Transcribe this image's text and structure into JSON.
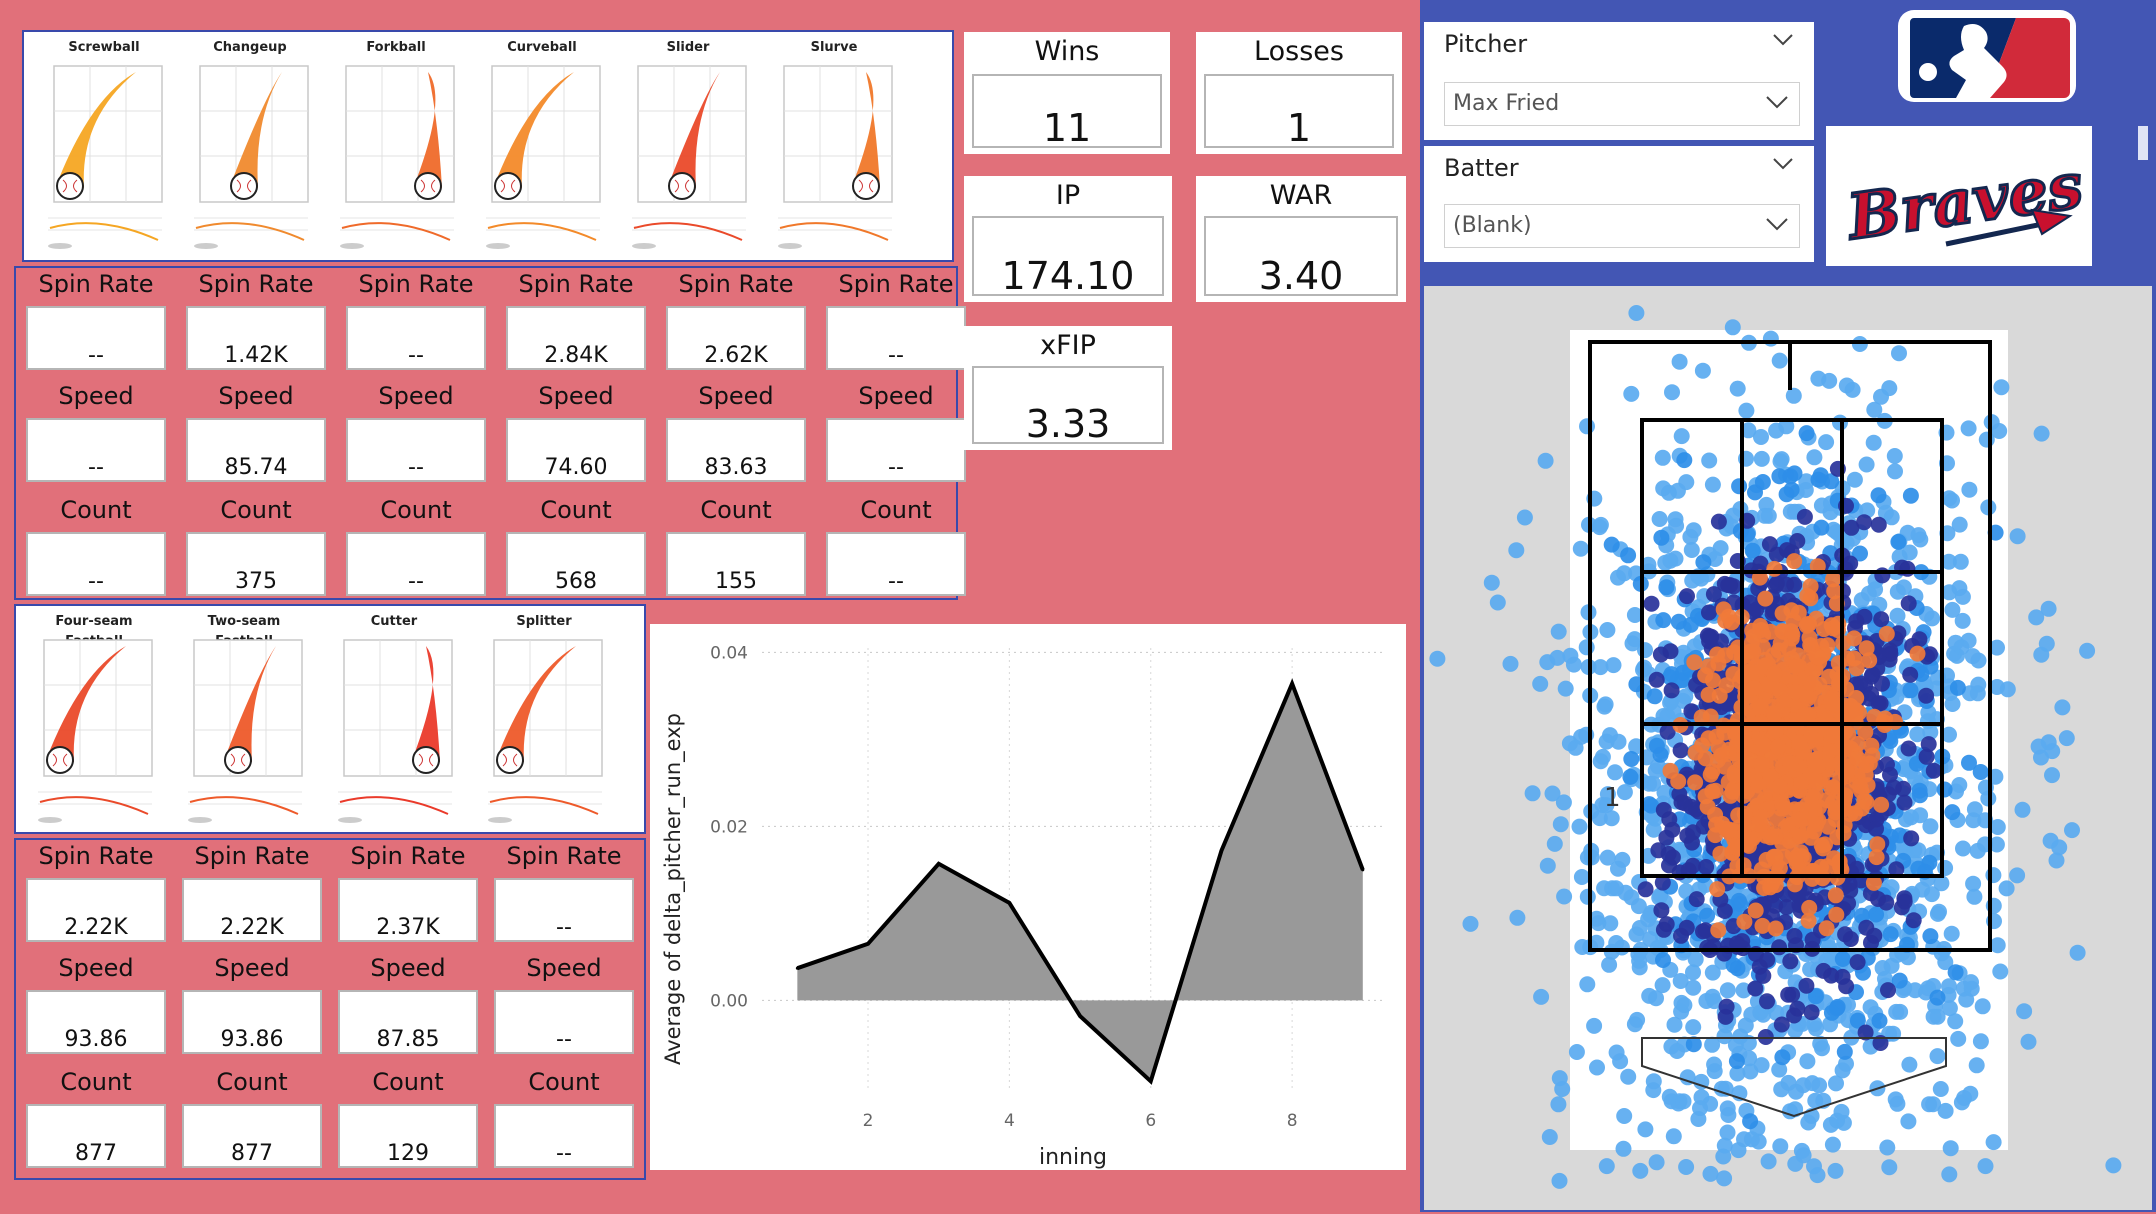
{
  "pitch_row1": [
    {
      "name": "Screwball",
      "color": "#f5a623"
    },
    {
      "name": "Changeup",
      "color": "#f08a2e"
    },
    {
      "name": "Forkball",
      "color": "#ef6a2a"
    },
    {
      "name": "Curveball",
      "color": "#f38a2a"
    },
    {
      "name": "Slider",
      "color": "#ea4a2a"
    },
    {
      "name": "Slurve",
      "color": "#f0782a"
    }
  ],
  "pitch_row2": [
    {
      "name": "Four-seam Fastball",
      "color": "#ea4a2a"
    },
    {
      "name": "Two-seam Fastball",
      "color": "#ee5a2a"
    },
    {
      "name": "Cutter",
      "color": "#ea3a2a"
    },
    {
      "name": "Splitter",
      "color": "#ee5a2a"
    }
  ],
  "stat_labels": {
    "spin": "Spin Rate",
    "speed": "Speed",
    "count": "Count"
  },
  "stats_row1": [
    {
      "spin": "--",
      "speed": "--",
      "count": "--"
    },
    {
      "spin": "1.42K",
      "speed": "85.74",
      "count": "375"
    },
    {
      "spin": "--",
      "speed": "--",
      "count": "--"
    },
    {
      "spin": "2.84K",
      "speed": "74.60",
      "count": "568"
    },
    {
      "spin": "2.62K",
      "speed": "83.63",
      "count": "155"
    },
    {
      "spin": "--",
      "speed": "--",
      "count": "--"
    }
  ],
  "stats_row2": [
    {
      "spin": "2.22K",
      "speed": "93.86",
      "count": "877"
    },
    {
      "spin": "2.22K",
      "speed": "93.86",
      "count": "877"
    },
    {
      "spin": "2.37K",
      "speed": "87.85",
      "count": "129"
    },
    {
      "spin": "--",
      "speed": "--",
      "count": "--"
    }
  ],
  "kpis": {
    "wins": {
      "label": "Wins",
      "value": "11"
    },
    "losses": {
      "label": "Losses",
      "value": "1"
    },
    "ip": {
      "label": "IP",
      "value": "174.10"
    },
    "war": {
      "label": "WAR",
      "value": "3.40"
    },
    "xfip": {
      "label": "xFIP",
      "value": "3.33"
    }
  },
  "slicers": {
    "pitcher": {
      "title": "Pitcher",
      "value": "Max Fried"
    },
    "batter": {
      "title": "Batter",
      "value": "(Blank)"
    }
  },
  "logos": {
    "braves_text": "Braves"
  },
  "colors": {
    "background": "#e1707a",
    "panel_border": "#3949ab",
    "right_panel": "#4356b4",
    "area_fill": "#999999",
    "scatter_orange": "#f07a3a",
    "scatter_navy": "#28329a",
    "scatter_light": "#2e8ee8",
    "scatter_sky": "#5aaaf0"
  },
  "chart_data": {
    "type": "area",
    "xlabel": "inning",
    "ylabel": "Average of delta_pitcher_run_exp",
    "x": [
      1,
      2,
      3,
      4,
      5,
      6,
      7,
      8,
      9
    ],
    "values": [
      0.0037,
      0.0065,
      0.0157,
      0.0112,
      -0.0018,
      -0.0093,
      0.0172,
      0.0364,
      0.015
    ],
    "xticks": [
      "2",
      "4",
      "6",
      "8"
    ],
    "yticks": [
      "0.00",
      "0.02",
      "0.04"
    ],
    "ylim": [
      -0.01,
      0.04
    ],
    "grid": true
  },
  "zone_chart": {
    "label": "1"
  }
}
